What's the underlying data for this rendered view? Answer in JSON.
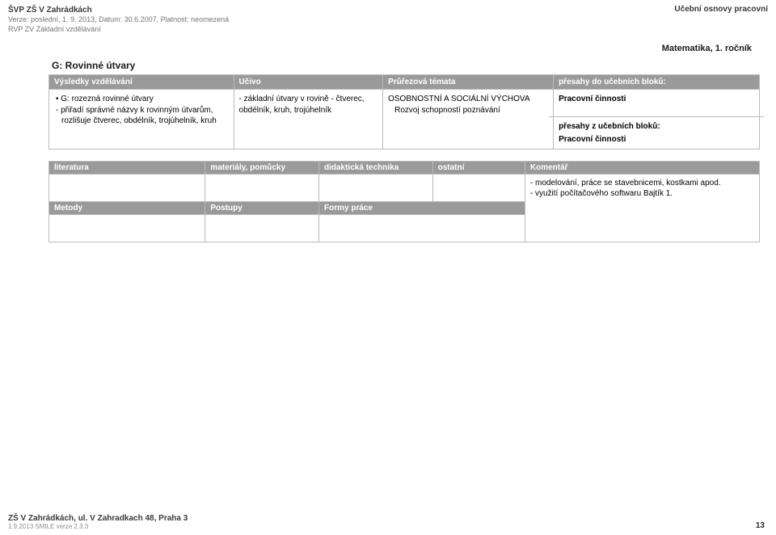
{
  "header": {
    "title": "ŠVP ZŠ V Zahrádkách",
    "version": "Verze: poslední, 1. 9. 2013, Datum: 30.6.2007, Platnost: neomezená",
    "rvp": "RVP ZV Základní vzdělávání",
    "right": "Učební osnovy pracovní"
  },
  "subject": "Matematika, 1. ročník",
  "section_title": "G: Rovinné útvary",
  "main_headers": {
    "vysledky": "Výsledky vzdělávání",
    "ucivo": "Učivo",
    "pruerez": "Průřezová témata",
    "presahy": "přesahy do učebních bloků:"
  },
  "vysledky": {
    "bullet1": "G: rozezná rovinné útvary",
    "dash1": "- přiřadí správné názvy k rovinným útvarům, rozlišuje čtverec, obdélník, trojúhelník, kruh"
  },
  "ucivo": {
    "line1": "- základní útvary v rovině - čtverec, obdélník, kruh, trojúhelník"
  },
  "pruerez": {
    "title": "OSOBNOSTNÍ A SOCIÁLNÍ VÝCHOVA",
    "sub": "Rozvoj schopností poznávání"
  },
  "presahy_do": {
    "value": "Pracovní činnosti"
  },
  "presahy_z": {
    "heading": "přesahy z učebních bloků:",
    "value": "Pracovní činnosti"
  },
  "sec_headers_row1": {
    "c1": "literatura",
    "c2": "materiály, pomůcky",
    "c3": "didaktická technika",
    "c4": "ostatní",
    "c5": "Komentář"
  },
  "sec_headers_row2": {
    "c1": "Metody",
    "c2": "Postupy",
    "c3": "Formy práce"
  },
  "komentar": {
    "line1": "- modelování, práce se stavebnicemi, kostkami apod.",
    "line2": "- využití počítačového softwaru Bajtík 1."
  },
  "footer": {
    "left": "ZŠ V Zahrádkách, ul. V Zahradkach 48, Praha 3",
    "sub": "1.9.2013 SMILE verze 2.3.3",
    "page": "13"
  },
  "colors": {
    "header_bg": "#9a9a9a",
    "border": "#bababa",
    "text": "#000000",
    "muted": "#757575"
  }
}
